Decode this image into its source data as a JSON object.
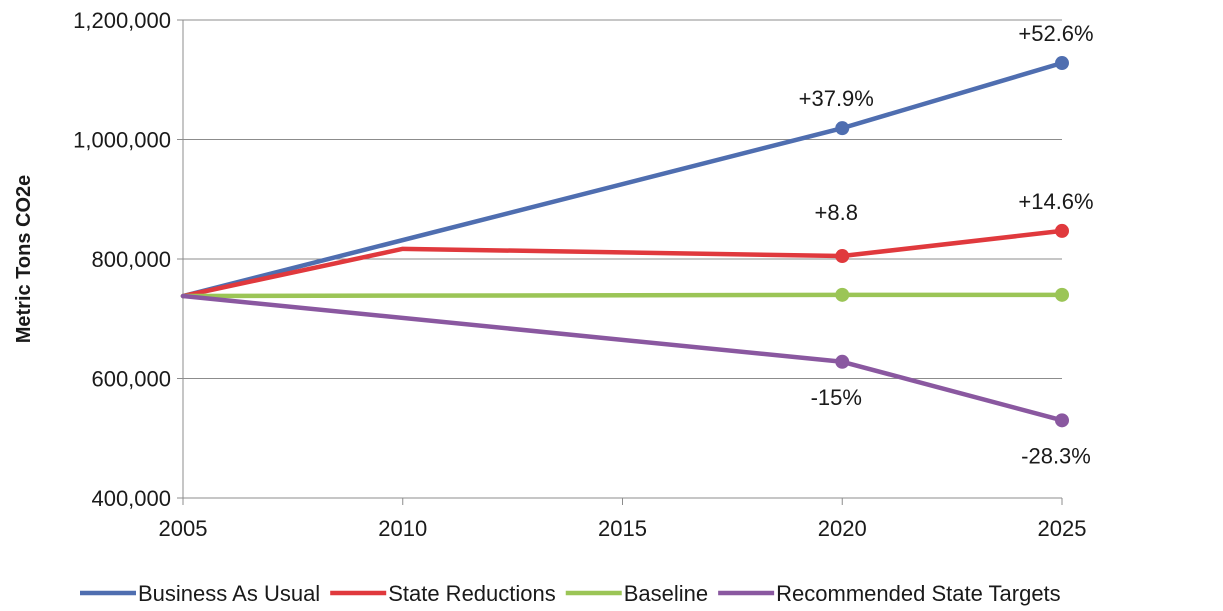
{
  "chart_data": {
    "type": "line",
    "title": "",
    "xlabel": "",
    "ylabel": "Metric Tons CO2e",
    "x": [
      2005,
      2010,
      2015,
      2020,
      2025
    ],
    "xlim": [
      2005,
      2025
    ],
    "ylim": [
      400000,
      1200000
    ],
    "x_ticks": [
      "2005",
      "2010",
      "2015",
      "2020",
      "2025"
    ],
    "y_ticks": [
      "400,000",
      "600,000",
      "800,000",
      "1,000,000",
      "1,200,000"
    ],
    "y_tick_values": [
      400000,
      600000,
      800000,
      1000000,
      1200000
    ],
    "grid": "horizontal",
    "legend_position": "bottom",
    "series": [
      {
        "name": "Business As Usual",
        "color": "#4f6eb0",
        "points": [
          [
            2005,
            738000
          ],
          [
            2020,
            1019000
          ],
          [
            2025,
            1128000
          ]
        ],
        "markers": [
          [
            2020,
            1019000
          ],
          [
            2025,
            1128000
          ]
        ]
      },
      {
        "name": "State Reductions",
        "color": "#e0393d",
        "points": [
          [
            2005,
            738000
          ],
          [
            2010,
            817000
          ],
          [
            2020,
            805000
          ],
          [
            2025,
            847000
          ]
        ],
        "markers": [
          [
            2020,
            805000
          ],
          [
            2025,
            847000
          ]
        ]
      },
      {
        "name": "Baseline",
        "color": "#9bc556",
        "points": [
          [
            2005,
            738000
          ],
          [
            2020,
            740000
          ],
          [
            2025,
            740000
          ]
        ],
        "markers": [
          [
            2020,
            740000
          ],
          [
            2025,
            740000
          ]
        ]
      },
      {
        "name": "Recommended State Targets",
        "color": "#8a58a0",
        "points": [
          [
            2005,
            738000
          ],
          [
            2020,
            628000
          ],
          [
            2025,
            530000
          ]
        ],
        "markers": [
          [
            2020,
            628000
          ],
          [
            2025,
            530000
          ]
        ]
      }
    ],
    "annotations": [
      {
        "text": "+52.6%",
        "x": 2025,
        "y": 1128000,
        "pos": "above"
      },
      {
        "text": "+37.9%",
        "x": 2020,
        "y": 1019000,
        "pos": "above"
      },
      {
        "text": "+8.8",
        "x": 2020,
        "y": 805000,
        "pos": "above-high"
      },
      {
        "text": "+14.6%",
        "x": 2025,
        "y": 847000,
        "pos": "above"
      },
      {
        "text": "-15%",
        "x": 2020,
        "y": 628000,
        "pos": "below"
      },
      {
        "text": "-28.3%",
        "x": 2025,
        "y": 530000,
        "pos": "below"
      }
    ]
  }
}
